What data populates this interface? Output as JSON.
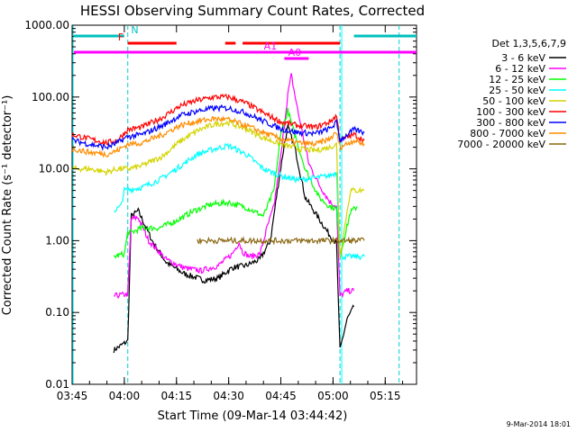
{
  "chart_data": {
    "type": "line",
    "title": "HESSI Observing Summary Count Rates, Corrected",
    "xlabel": "Start Time (09-Mar-14 03:44:42)",
    "ylabel": "Corrected Count Rate (s⁻¹ detector⁻¹)",
    "footer": "9-Mar-2014 18:01",
    "yscale": "log",
    "ylim": [
      0.01,
      1000
    ],
    "xlim_minutes": [
      0,
      99
    ],
    "y_ticks": [
      {
        "v": 1000,
        "label": "1000.00"
      },
      {
        "v": 100,
        "label": "100.00"
      },
      {
        "v": 10,
        "label": "10.00"
      },
      {
        "v": 1,
        "label": "1.00"
      },
      {
        "v": 0.1,
        "label": "0.10"
      },
      {
        "v": 0.01,
        "label": "0.01"
      }
    ],
    "x_ticks": [
      {
        "t": 0,
        "label": "03:45"
      },
      {
        "t": 15,
        "label": "04:00"
      },
      {
        "t": 30,
        "label": "04:15"
      },
      {
        "t": 45,
        "label": "04:30"
      },
      {
        "t": 60,
        "label": "04:45"
      },
      {
        "t": 75,
        "label": "05:00"
      },
      {
        "t": 90,
        "label": "05:15"
      }
    ],
    "legend_title": "Det 1,3,5,6,7,9",
    "series": [
      {
        "name": "3 - 6 keV",
        "color": "#000000",
        "points": [
          [
            12,
            0.03
          ],
          [
            16,
            0.04
          ],
          [
            17,
            2.2
          ],
          [
            19,
            2.6
          ],
          [
            23,
            1.0
          ],
          [
            27,
            0.5
          ],
          [
            32,
            0.35
          ],
          [
            38,
            0.28
          ],
          [
            42,
            0.3
          ],
          [
            46,
            0.42
          ],
          [
            50,
            0.45
          ],
          [
            54,
            0.55
          ],
          [
            57,
            1.0
          ],
          [
            59,
            5
          ],
          [
            61,
            22
          ],
          [
            62,
            38
          ],
          [
            64,
            20
          ],
          [
            67,
            4
          ],
          [
            71,
            2
          ],
          [
            74,
            1.2
          ],
          [
            76,
            0.9
          ],
          [
            77,
            0.03
          ],
          [
            79,
            0.08
          ],
          [
            81,
            0.12
          ]
        ]
      },
      {
        "name": "6 - 12 keV",
        "color": "#ff00ff",
        "points": [
          [
            12,
            0.17
          ],
          [
            16,
            0.18
          ],
          [
            17,
            2.0
          ],
          [
            19,
            2.1
          ],
          [
            22,
            1.0
          ],
          [
            27,
            0.55
          ],
          [
            32,
            0.42
          ],
          [
            37,
            0.38
          ],
          [
            42,
            0.45
          ],
          [
            46,
            0.65
          ],
          [
            48,
            0.95
          ],
          [
            49,
            0.7
          ],
          [
            51,
            0.6
          ],
          [
            54,
            0.65
          ],
          [
            56,
            1.5
          ],
          [
            58,
            3
          ],
          [
            60,
            15
          ],
          [
            62,
            110
          ],
          [
            63,
            200
          ],
          [
            65,
            60
          ],
          [
            68,
            12
          ],
          [
            71,
            6
          ],
          [
            74,
            3.5
          ],
          [
            76,
            3.0
          ],
          [
            77,
            0.17
          ],
          [
            79,
            0.2
          ],
          [
            81,
            0.2
          ]
        ]
      },
      {
        "name": "12 - 25 keV",
        "color": "#00ff00",
        "points": [
          [
            12,
            0.6
          ],
          [
            15,
            0.65
          ],
          [
            16,
            1.3
          ],
          [
            17,
            1.3
          ],
          [
            20,
            1.5
          ],
          [
            25,
            1.5
          ],
          [
            30,
            1.9
          ],
          [
            35,
            2.6
          ],
          [
            40,
            3.2
          ],
          [
            45,
            3.4
          ],
          [
            50,
            2.9
          ],
          [
            55,
            2.2
          ],
          [
            58,
            5
          ],
          [
            60,
            30
          ],
          [
            62,
            65
          ],
          [
            64,
            30
          ],
          [
            67,
            10
          ],
          [
            71,
            4
          ],
          [
            74,
            3
          ],
          [
            76,
            2.8
          ],
          [
            77,
            0.6
          ],
          [
            80,
            2.5
          ],
          [
            82,
            3.0
          ]
        ]
      },
      {
        "name": "25 - 50 keV",
        "color": "#00ffff",
        "points": [
          [
            12,
            2.6
          ],
          [
            14,
            3.0
          ],
          [
            15,
            5
          ],
          [
            20,
            5.5
          ],
          [
            25,
            7
          ],
          [
            30,
            10
          ],
          [
            36,
            16
          ],
          [
            41,
            19
          ],
          [
            45,
            21
          ],
          [
            50,
            16
          ],
          [
            55,
            10
          ],
          [
            60,
            8
          ],
          [
            65,
            7
          ],
          [
            70,
            7.5
          ],
          [
            74,
            8
          ],
          [
            76,
            9
          ],
          [
            77,
            0.6
          ],
          [
            80,
            0.6
          ],
          [
            84,
            0.6
          ]
        ]
      },
      {
        "name": "50 - 100 keV",
        "color": "#d4d400",
        "points": [
          [
            0,
            10
          ],
          [
            5,
            10
          ],
          [
            10,
            9
          ],
          [
            13,
            10
          ],
          [
            16,
            10
          ],
          [
            20,
            11
          ],
          [
            26,
            15
          ],
          [
            31,
            24
          ],
          [
            36,
            34
          ],
          [
            41,
            42
          ],
          [
            45,
            44
          ],
          [
            50,
            36
          ],
          [
            55,
            27
          ],
          [
            60,
            22
          ],
          [
            65,
            19
          ],
          [
            70,
            18
          ],
          [
            74,
            20
          ],
          [
            76,
            22
          ],
          [
            77,
            0.6
          ],
          [
            80,
            5
          ],
          [
            84,
            5
          ]
        ]
      },
      {
        "name": "100 - 300 keV",
        "color": "#ff0000",
        "points": [
          [
            0,
            30
          ],
          [
            5,
            26
          ],
          [
            10,
            23
          ],
          [
            13,
            25
          ],
          [
            16,
            35
          ],
          [
            20,
            38
          ],
          [
            26,
            52
          ],
          [
            31,
            75
          ],
          [
            36,
            90
          ],
          [
            41,
            100
          ],
          [
            45,
            100
          ],
          [
            50,
            82
          ],
          [
            55,
            60
          ],
          [
            60,
            45
          ],
          [
            65,
            40
          ],
          [
            70,
            38
          ],
          [
            74,
            45
          ],
          [
            76,
            55
          ],
          [
            77,
            25
          ],
          [
            81,
            30
          ],
          [
            84,
            25
          ]
        ]
      },
      {
        "name": "300 - 800 keV",
        "color": "#0000ff",
        "points": [
          [
            0,
            25
          ],
          [
            5,
            22
          ],
          [
            10,
            20
          ],
          [
            13,
            23
          ],
          [
            16,
            28
          ],
          [
            20,
            30
          ],
          [
            26,
            40
          ],
          [
            31,
            55
          ],
          [
            36,
            64
          ],
          [
            41,
            70
          ],
          [
            45,
            70
          ],
          [
            50,
            60
          ],
          [
            55,
            46
          ],
          [
            60,
            36
          ],
          [
            65,
            32
          ],
          [
            70,
            31
          ],
          [
            74,
            36
          ],
          [
            76,
            44
          ],
          [
            77,
            25
          ],
          [
            81,
            35
          ],
          [
            84,
            32
          ]
        ]
      },
      {
        "name": "800 - 7000 keV",
        "color": "#ff8c00",
        "points": [
          [
            0,
            19
          ],
          [
            5,
            17
          ],
          [
            10,
            16
          ],
          [
            13,
            18
          ],
          [
            16,
            22
          ],
          [
            20,
            23
          ],
          [
            26,
            30
          ],
          [
            31,
            40
          ],
          [
            36,
            46
          ],
          [
            41,
            50
          ],
          [
            45,
            48
          ],
          [
            50,
            40
          ],
          [
            55,
            32
          ],
          [
            60,
            26
          ],
          [
            65,
            23
          ],
          [
            70,
            22
          ],
          [
            74,
            26
          ],
          [
            76,
            32
          ],
          [
            77,
            20
          ],
          [
            81,
            25
          ],
          [
            84,
            22
          ]
        ]
      },
      {
        "name": "7000 - 20000 keV",
        "color": "#8b6914",
        "points": [
          [
            36,
            1.0
          ],
          [
            38,
            1.0
          ],
          [
            44,
            1.0
          ],
          [
            48,
            1.0
          ],
          [
            84,
            1.0
          ]
        ]
      }
    ],
    "annotations": [
      {
        "label": "N",
        "color": "#00c0c0"
      },
      {
        "label": "F",
        "color": "#ff0000"
      },
      {
        "label": "A1",
        "color": "#ff00ff"
      },
      {
        "label": "A0",
        "color": "#ff00ff"
      }
    ]
  }
}
